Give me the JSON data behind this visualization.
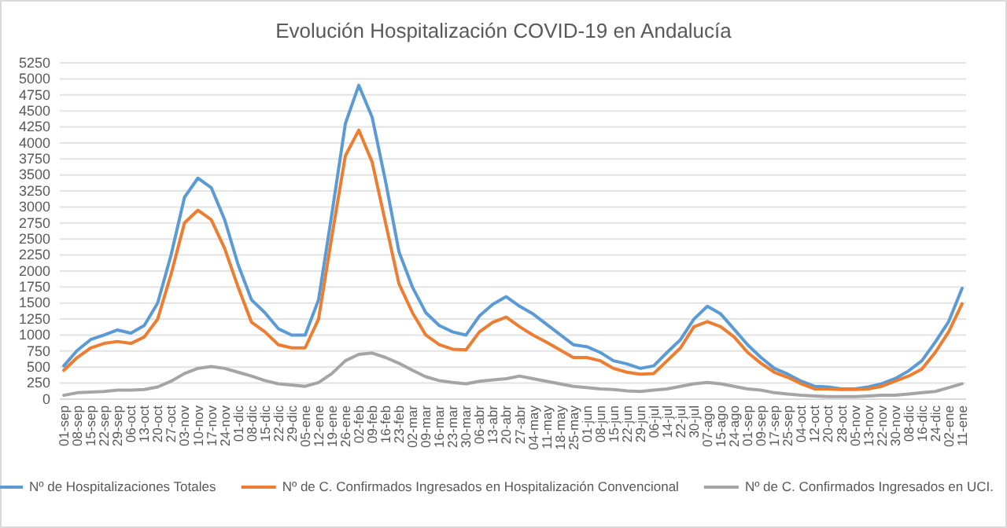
{
  "chart_data": {
    "type": "line",
    "title": "Evolución Hospitalización COVID-19 en Andalucía",
    "categories": [
      "01-sep",
      "08-sep",
      "15-sep",
      "22-sep",
      "29-sep",
      "06-oct",
      "13-oct",
      "20-oct",
      "27-oct",
      "03-nov",
      "10-nov",
      "17-nov",
      "24-nov",
      "01-dic",
      "08-dic",
      "15-dic",
      "22-dic",
      "29-dic",
      "05-ene",
      "12-ene",
      "19-ene",
      "26-ene",
      "02-feb",
      "09-feb",
      "16-feb",
      "23-feb",
      "02-mar",
      "09-mar",
      "16-mar",
      "23-mar",
      "30-mar",
      "06-abr",
      "13-abr",
      "20-abr",
      "27-abr",
      "04-may",
      "11-may",
      "18-may",
      "25-may",
      "01-jun",
      "08-jun",
      "15-jun",
      "22-jun",
      "29-jun",
      "06-jul",
      "14-jul",
      "22-jul",
      "30-jul",
      "07-ago",
      "15-ago",
      "24-ago",
      "01-sep",
      "09-sep",
      "17-sep",
      "25-sep",
      "04-oct",
      "12-oct",
      "20-oct",
      "28-oct",
      "05-nov",
      "13-nov",
      "22-nov",
      "30-nov",
      "08-dic",
      "16-dic",
      "24-dic",
      "02-ene",
      "11-ene"
    ],
    "series": [
      {
        "name": "Nº de Hospitalizaciones Totales",
        "color": "#5b9bd5",
        "values": [
          520,
          760,
          930,
          1000,
          1080,
          1030,
          1150,
          1500,
          2250,
          3150,
          3450,
          3300,
          2800,
          2100,
          1550,
          1350,
          1100,
          1000,
          1000,
          1550,
          2900,
          4300,
          4900,
          4400,
          3400,
          2300,
          1750,
          1350,
          1150,
          1050,
          1000,
          1300,
          1480,
          1600,
          1450,
          1330,
          1170,
          1010,
          850,
          820,
          730,
          600,
          550,
          480,
          520,
          730,
          930,
          1250,
          1450,
          1330,
          1090,
          850,
          650,
          480,
          390,
          280,
          200,
          190,
          160,
          160,
          190,
          240,
          320,
          440,
          600,
          890,
          1210,
          1730
        ]
      },
      {
        "name": "Nº de C. Confirmados Ingresados en Hospitalización Convencional",
        "color": "#ed7d31",
        "values": [
          450,
          650,
          800,
          870,
          900,
          870,
          970,
          1250,
          1950,
          2750,
          2950,
          2800,
          2350,
          1750,
          1200,
          1050,
          850,
          800,
          800,
          1250,
          2550,
          3800,
          4200,
          3700,
          2750,
          1800,
          1350,
          1000,
          850,
          780,
          770,
          1050,
          1200,
          1280,
          1130,
          1000,
          890,
          770,
          650,
          650,
          600,
          480,
          420,
          390,
          400,
          600,
          800,
          1130,
          1210,
          1130,
          970,
          730,
          560,
          420,
          340,
          240,
          160,
          160,
          150,
          150,
          160,
          200,
          280,
          360,
          470,
          730,
          1050,
          1490
        ]
      },
      {
        "name": "Nº de C. Confirmados Ingresados en UCI.",
        "color": "#a5a5a5",
        "values": [
          60,
          100,
          110,
          120,
          140,
          140,
          150,
          190,
          280,
          400,
          480,
          510,
          480,
          420,
          360,
          290,
          240,
          220,
          200,
          260,
          400,
          600,
          700,
          720,
          650,
          560,
          450,
          350,
          290,
          260,
          240,
          280,
          300,
          320,
          360,
          320,
          280,
          240,
          200,
          180,
          160,
          150,
          130,
          120,
          140,
          160,
          200,
          240,
          260,
          240,
          200,
          160,
          140,
          100,
          80,
          60,
          50,
          40,
          40,
          40,
          50,
          60,
          60,
          80,
          100,
          120,
          180,
          240
        ]
      }
    ],
    "ylim": [
      0,
      5250
    ],
    "yticks": [
      0,
      250,
      500,
      750,
      1000,
      1250,
      1500,
      1750,
      2000,
      2250,
      2500,
      2750,
      3000,
      3250,
      3500,
      3750,
      4000,
      4250,
      4500,
      4750,
      5000,
      5250
    ],
    "grid": "y",
    "legend": "bottom",
    "line_style": "solid",
    "marker": "none"
  }
}
